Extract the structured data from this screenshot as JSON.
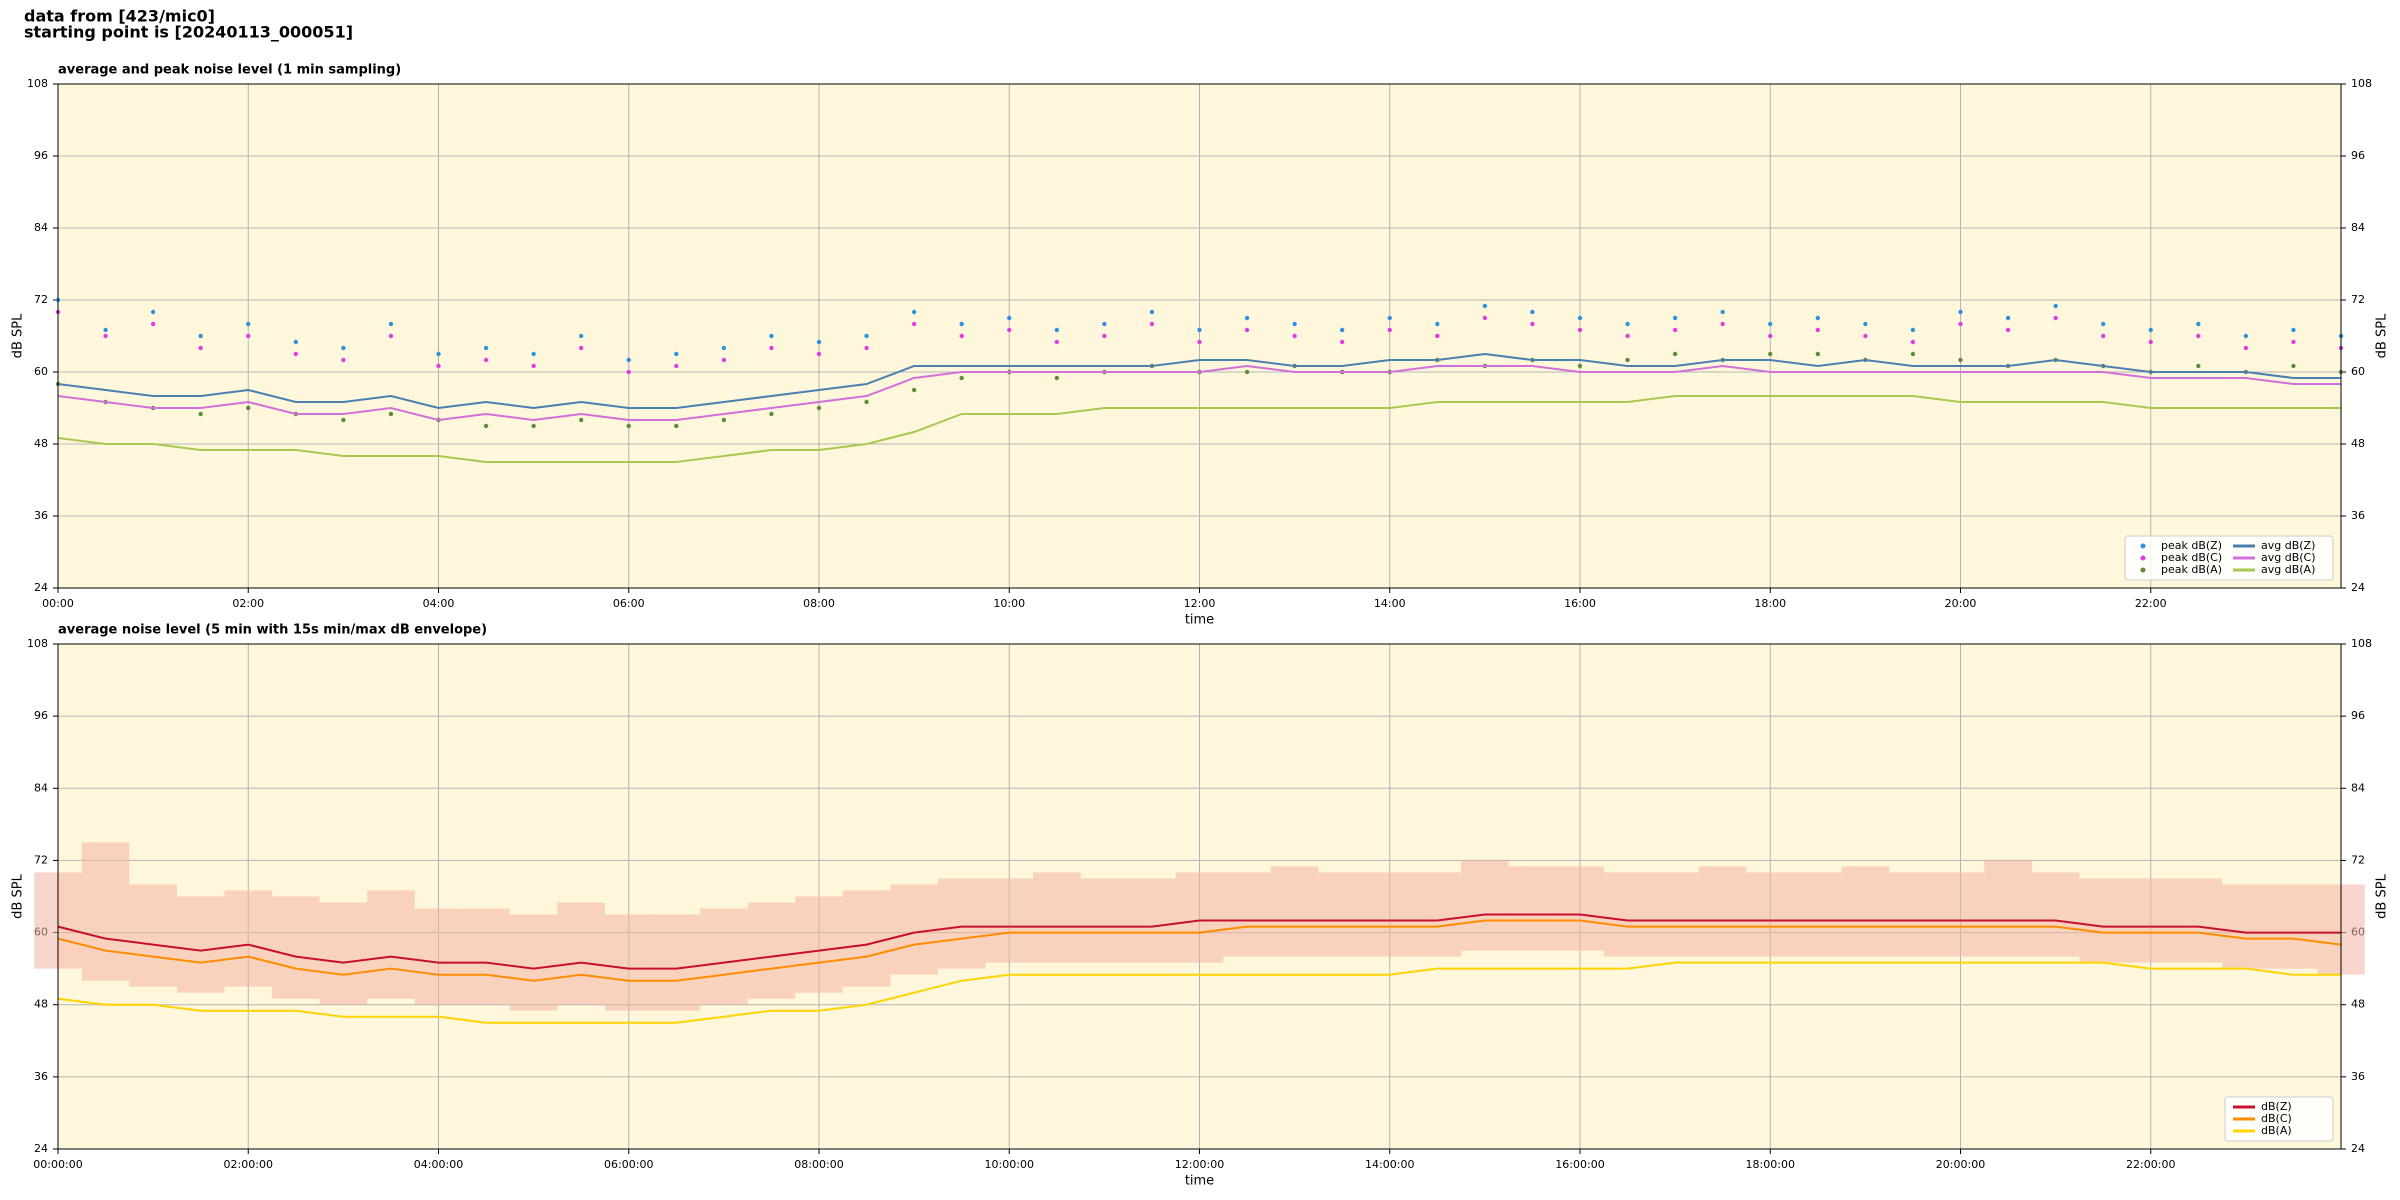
{
  "header": {
    "lines": [
      "data from [423/mic0]",
      "starting point is [20240113_000051]"
    ]
  },
  "chart_data": [
    {
      "type": "line",
      "title": "average and peak noise level (1 min sampling)",
      "xlabel": "time",
      "ylabel": "dB SPL",
      "x": [
        0,
        0.5,
        1,
        1.5,
        2,
        2.5,
        3,
        3.5,
        4,
        4.5,
        5,
        5.5,
        6,
        6.5,
        7,
        7.5,
        8,
        8.5,
        9,
        9.5,
        10,
        10.5,
        11,
        11.5,
        12,
        12.5,
        13,
        13.5,
        14,
        14.5,
        15,
        15.5,
        16,
        16.5,
        17,
        17.5,
        18,
        18.5,
        19,
        19.5,
        20,
        20.5,
        21,
        21.5,
        22,
        22.5,
        23,
        23.5,
        24
      ],
      "xlim": [
        0,
        24
      ],
      "xticks": [
        {
          "value": 0,
          "label": "00:00"
        },
        {
          "value": 2,
          "label": "02:00"
        },
        {
          "value": 4,
          "label": "04:00"
        },
        {
          "value": 6,
          "label": "06:00"
        },
        {
          "value": 8,
          "label": "08:00"
        },
        {
          "value": 10,
          "label": "10:00"
        },
        {
          "value": 12,
          "label": "12:00"
        },
        {
          "value": 14,
          "label": "14:00"
        },
        {
          "value": 16,
          "label": "16:00"
        },
        {
          "value": 18,
          "label": "18:00"
        },
        {
          "value": 20,
          "label": "20:00"
        },
        {
          "value": 22,
          "label": "22:00"
        }
      ],
      "ylim": [
        24,
        108
      ],
      "yticks": [
        24,
        36,
        48,
        60,
        72,
        84,
        96,
        108
      ],
      "grid": true,
      "legend": "lower right",
      "series": [
        {
          "name": "peak dB(Z)",
          "color": "#2f8fe0",
          "style": "marker",
          "values": [
            72,
            67,
            70,
            66,
            68,
            65,
            64,
            68,
            63,
            64,
            63,
            66,
            62,
            63,
            64,
            66,
            65,
            66,
            70,
            68,
            69,
            67,
            68,
            70,
            67,
            69,
            68,
            67,
            69,
            68,
            71,
            70,
            69,
            68,
            69,
            70,
            68,
            69,
            68,
            67,
            70,
            69,
            71,
            68,
            67,
            68,
            66,
            67,
            66
          ]
        },
        {
          "name": "peak dB(C)",
          "color": "#e03ce0",
          "style": "marker",
          "values": [
            70,
            66,
            68,
            64,
            66,
            63,
            62,
            66,
            61,
            62,
            61,
            64,
            60,
            61,
            62,
            64,
            63,
            64,
            68,
            66,
            67,
            65,
            66,
            68,
            65,
            67,
            66,
            65,
            67,
            66,
            69,
            68,
            67,
            66,
            67,
            68,
            66,
            67,
            66,
            65,
            68,
            67,
            69,
            66,
            65,
            66,
            64,
            65,
            64
          ]
        },
        {
          "name": "peak dB(A)",
          "color": "#5f8a3a",
          "style": "marker",
          "values": [
            58,
            55,
            54,
            53,
            54,
            53,
            52,
            53,
            52,
            51,
            51,
            52,
            51,
            51,
            52,
            53,
            54,
            55,
            57,
            59,
            60,
            59,
            60,
            61,
            60,
            60,
            61,
            60,
            60,
            62,
            61,
            62,
            61,
            62,
            63,
            62,
            63,
            63,
            62,
            63,
            62,
            61,
            62,
            61,
            60,
            61,
            60,
            61,
            60
          ]
        },
        {
          "name": "avg dB(Z)",
          "color": "#4a7fb0",
          "style": "line",
          "values": [
            58,
            57,
            56,
            56,
            57,
            55,
            55,
            56,
            54,
            55,
            54,
            55,
            54,
            54,
            55,
            56,
            57,
            58,
            61,
            61,
            61,
            61,
            61,
            61,
            62,
            62,
            61,
            61,
            62,
            62,
            63,
            62,
            62,
            61,
            61,
            62,
            62,
            61,
            62,
            61,
            61,
            61,
            62,
            61,
            60,
            60,
            60,
            59,
            59
          ]
        },
        {
          "name": "avg dB(C)",
          "color": "#d070d8",
          "style": "line",
          "values": [
            56,
            55,
            54,
            54,
            55,
            53,
            53,
            54,
            52,
            53,
            52,
            53,
            52,
            52,
            53,
            54,
            55,
            56,
            59,
            60,
            60,
            60,
            60,
            60,
            60,
            61,
            60,
            60,
            60,
            61,
            61,
            61,
            60,
            60,
            60,
            61,
            60,
            60,
            60,
            60,
            60,
            60,
            60,
            60,
            59,
            59,
            59,
            58,
            58
          ]
        },
        {
          "name": "avg dB(A)",
          "color": "#a8c850",
          "style": "line",
          "values": [
            49,
            48,
            48,
            47,
            47,
            47,
            46,
            46,
            46,
            45,
            45,
            45,
            45,
            45,
            46,
            47,
            47,
            48,
            50,
            53,
            53,
            53,
            54,
            54,
            54,
            54,
            54,
            54,
            54,
            55,
            55,
            55,
            55,
            55,
            56,
            56,
            56,
            56,
            56,
            56,
            55,
            55,
            55,
            55,
            54,
            54,
            54,
            54,
            54
          ]
        }
      ]
    },
    {
      "type": "line",
      "title": "average noise level (5 min with 15s min/max dB envelope)",
      "xlabel": "time",
      "ylabel": "dB SPL",
      "x": [
        0,
        0.5,
        1,
        1.5,
        2,
        2.5,
        3,
        3.5,
        4,
        4.5,
        5,
        5.5,
        6,
        6.5,
        7,
        7.5,
        8,
        8.5,
        9,
        9.5,
        10,
        10.5,
        11,
        11.5,
        12,
        12.5,
        13,
        13.5,
        14,
        14.5,
        15,
        15.5,
        16,
        16.5,
        17,
        17.5,
        18,
        18.5,
        19,
        19.5,
        20,
        20.5,
        21,
        21.5,
        22,
        22.5,
        23,
        23.5,
        24
      ],
      "xlim": [
        0,
        24
      ],
      "xticks": [
        {
          "value": 0,
          "label": "00:00:00"
        },
        {
          "value": 2,
          "label": "02:00:00"
        },
        {
          "value": 4,
          "label": "04:00:00"
        },
        {
          "value": 6,
          "label": "06:00:00"
        },
        {
          "value": 8,
          "label": "08:00:00"
        },
        {
          "value": 10,
          "label": "10:00:00"
        },
        {
          "value": 12,
          "label": "12:00:00"
        },
        {
          "value": 14,
          "label": "14:00:00"
        },
        {
          "value": 16,
          "label": "16:00:00"
        },
        {
          "value": 18,
          "label": "18:00:00"
        },
        {
          "value": 20,
          "label": "20:00:00"
        },
        {
          "value": 22,
          "label": "22:00:00"
        }
      ],
      "ylim": [
        24,
        108
      ],
      "yticks": [
        24,
        36,
        48,
        60,
        72,
        84,
        96,
        108
      ],
      "grid": true,
      "legend": "lower right",
      "envelope": {
        "color": "#f4b4a4",
        "lower": [
          54,
          52,
          51,
          50,
          51,
          49,
          48,
          49,
          48,
          48,
          47,
          48,
          47,
          47,
          48,
          49,
          50,
          51,
          53,
          54,
          55,
          55,
          55,
          55,
          55,
          56,
          56,
          56,
          56,
          56,
          57,
          57,
          57,
          56,
          56,
          56,
          56,
          56,
          56,
          56,
          56,
          56,
          56,
          55,
          55,
          55,
          54,
          54,
          53
        ],
        "upper": [
          70,
          75,
          68,
          66,
          67,
          66,
          65,
          67,
          64,
          64,
          63,
          65,
          63,
          63,
          64,
          65,
          66,
          67,
          68,
          69,
          69,
          70,
          69,
          69,
          70,
          70,
          71,
          70,
          70,
          70,
          72,
          71,
          71,
          70,
          70,
          71,
          70,
          70,
          71,
          70,
          70,
          72,
          70,
          69,
          69,
          69,
          68,
          68,
          68
        ]
      },
      "series": [
        {
          "name": "dB(Z)",
          "color": "#c8102e",
          "style": "line",
          "values": [
            61,
            59,
            58,
            57,
            58,
            56,
            55,
            56,
            55,
            55,
            54,
            55,
            54,
            54,
            55,
            56,
            57,
            58,
            60,
            61,
            61,
            61,
            61,
            61,
            62,
            62,
            62,
            62,
            62,
            62,
            63,
            63,
            63,
            62,
            62,
            62,
            62,
            62,
            62,
            62,
            62,
            62,
            62,
            61,
            61,
            61,
            60,
            60,
            60
          ]
        },
        {
          "name": "dB(C)",
          "color": "#ff8c00",
          "style": "line",
          "values": [
            59,
            57,
            56,
            55,
            56,
            54,
            53,
            54,
            53,
            53,
            52,
            53,
            52,
            52,
            53,
            54,
            55,
            56,
            58,
            59,
            60,
            60,
            60,
            60,
            60,
            61,
            61,
            61,
            61,
            61,
            62,
            62,
            62,
            61,
            61,
            61,
            61,
            61,
            61,
            61,
            61,
            61,
            61,
            60,
            60,
            60,
            59,
            59,
            58
          ]
        },
        {
          "name": "dB(A)",
          "color": "#ffd400",
          "style": "line",
          "values": [
            49,
            48,
            48,
            47,
            47,
            47,
            46,
            46,
            46,
            45,
            45,
            45,
            45,
            45,
            46,
            47,
            47,
            48,
            50,
            52,
            53,
            53,
            53,
            53,
            53,
            53,
            53,
            53,
            53,
            54,
            54,
            54,
            54,
            54,
            55,
            55,
            55,
            55,
            55,
            55,
            55,
            55,
            55,
            55,
            54,
            54,
            54,
            53,
            53
          ]
        }
      ]
    }
  ]
}
